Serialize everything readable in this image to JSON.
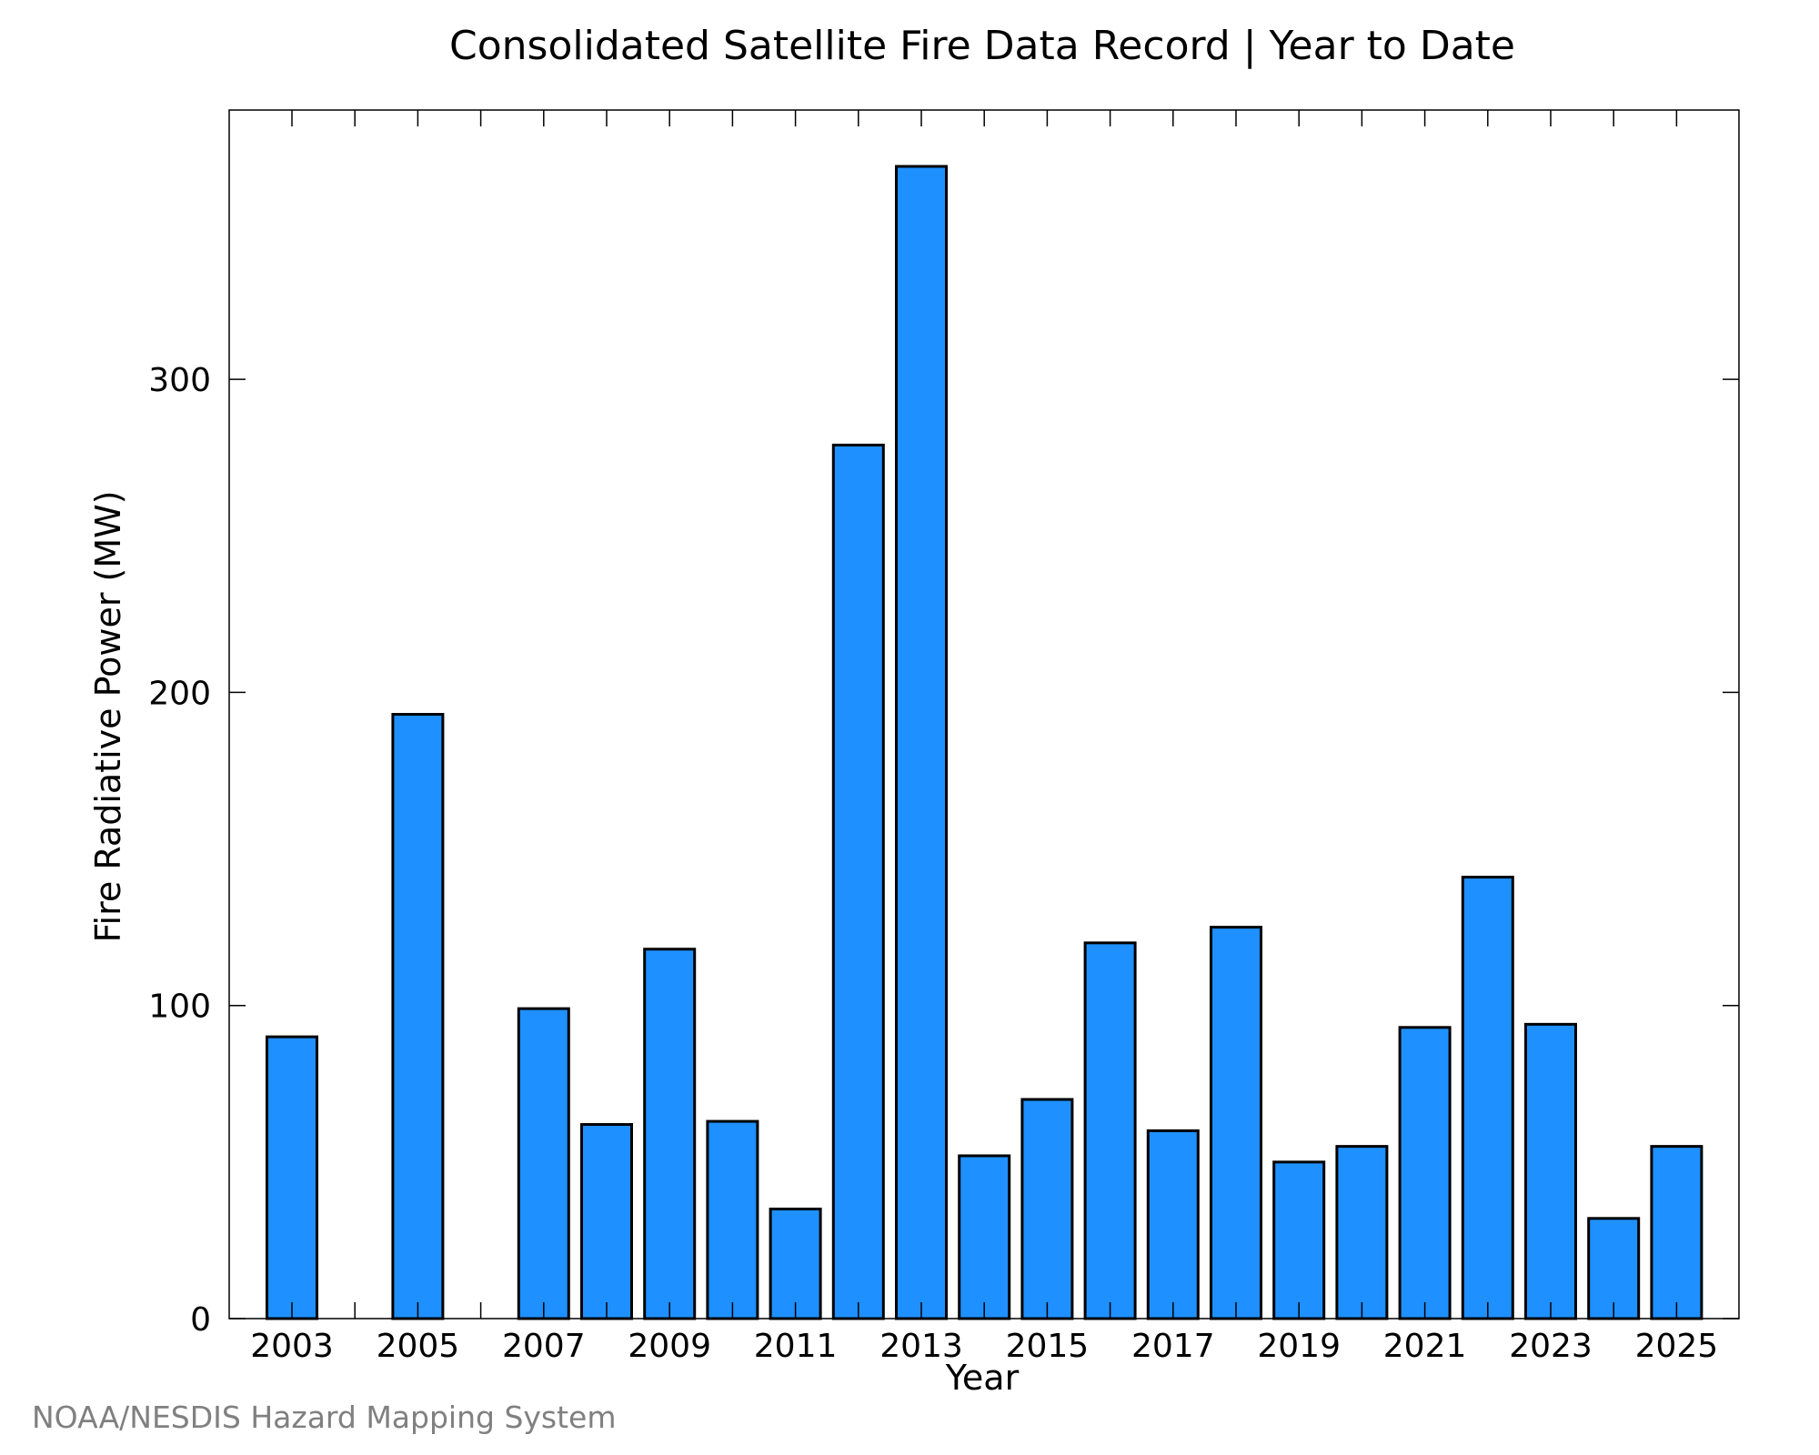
{
  "chart_data": {
    "type": "bar",
    "title": "Consolidated Satellite Fire Data Record | Year to Date",
    "xlabel": "Year",
    "ylabel": "Fire Radiative Power (MW)",
    "categories": [
      "2003",
      "2004",
      "2005",
      "2006",
      "2007",
      "2008",
      "2009",
      "2010",
      "2011",
      "2012",
      "2013",
      "2014",
      "2015",
      "2016",
      "2017",
      "2018",
      "2019",
      "2020",
      "2021",
      "2022",
      "2023",
      "2024",
      "2025"
    ],
    "values": [
      90,
      0,
      193,
      0,
      99,
      62,
      118,
      63,
      35,
      279,
      368,
      52,
      70,
      120,
      60,
      125,
      50,
      55,
      93,
      141,
      94,
      32,
      55
    ],
    "ylim": [
      0,
      386
    ],
    "yticks": [
      0,
      100,
      200,
      300
    ],
    "xtick_labels": [
      "2003",
      "2005",
      "2007",
      "2009",
      "2011",
      "2013",
      "2015",
      "2017",
      "2019",
      "2021",
      "2023",
      "2025"
    ],
    "bar_color": "#1e90ff",
    "bar_edge_color": "#000000",
    "grid": false,
    "legend": "none"
  },
  "credit": "NOAA/NESDIS Hazard Mapping System"
}
